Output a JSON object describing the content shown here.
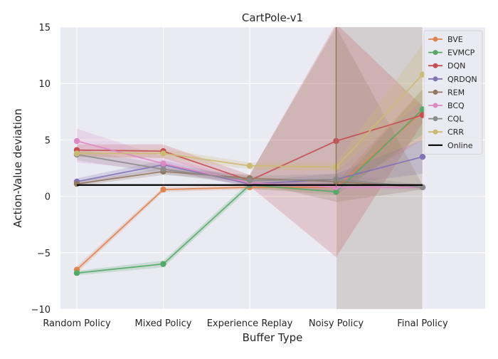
{
  "chart_data": {
    "type": "line",
    "title": "CartPole-v1",
    "xlabel": "Buffer Type",
    "ylabel": "Action-Value deviation",
    "categories": [
      "Random Policy",
      "Mixed Policy",
      "Experience Replay",
      "Noisy Policy",
      "Final Policy"
    ],
    "ylim": [
      -10,
      15
    ],
    "yticks": [
      -10,
      -5,
      0,
      5,
      10,
      15
    ],
    "grid": true,
    "legend_position": "top-right",
    "shaded_categories": [
      "Noisy Policy",
      "Final Policy"
    ],
    "series": [
      {
        "name": "BVE",
        "color": "#dd8452",
        "values": [
          -6.5,
          0.6,
          0.8,
          0.8,
          7.5
        ],
        "lower": [
          -6.8,
          0.4,
          0.6,
          0.5,
          5.0
        ],
        "upper": [
          -6.2,
          0.8,
          1.0,
          1.2,
          9.5
        ]
      },
      {
        "name": "EVMCP",
        "color": "#55a868",
        "values": [
          -6.8,
          -6.0,
          1.0,
          0.4,
          7.7
        ],
        "lower": [
          -7.0,
          -6.3,
          0.7,
          0.1,
          5.5
        ],
        "upper": [
          -6.6,
          -5.7,
          1.3,
          0.7,
          9.5
        ]
      },
      {
        "name": "DQN",
        "color": "#c44e52",
        "values": [
          4.1,
          4.0,
          1.4,
          4.9,
          7.2
        ],
        "lower": [
          3.5,
          3.4,
          0.9,
          -5.4,
          6.5
        ],
        "upper": [
          4.6,
          4.6,
          1.9,
          15.3,
          8.0
        ]
      },
      {
        "name": "QRDQN",
        "color": "#8172b3",
        "values": [
          1.3,
          2.8,
          1.1,
          1.5,
          3.5
        ],
        "lower": [
          1.0,
          2.4,
          0.8,
          1.0,
          2.0
        ],
        "upper": [
          1.6,
          3.2,
          1.4,
          2.0,
          5.0
        ]
      },
      {
        "name": "REM",
        "color": "#937860",
        "values": [
          1.1,
          2.2,
          1.6,
          1.3,
          0.8
        ],
        "lower": [
          0.9,
          1.9,
          1.3,
          -0.5,
          0.6
        ],
        "upper": [
          1.3,
          2.5,
          1.9,
          15.0,
          1.0
        ]
      },
      {
        "name": "BCQ",
        "color": "#da8bc3",
        "values": [
          4.9,
          2.9,
          1.2,
          0.8,
          0.8
        ],
        "lower": [
          3.0,
          2.3,
          0.9,
          0.5,
          0.6
        ],
        "upper": [
          6.0,
          3.5,
          1.5,
          1.1,
          1.0
        ]
      },
      {
        "name": "CQL",
        "color": "#8c8c8c",
        "values": [
          3.7,
          2.4,
          1.4,
          1.5,
          0.8
        ],
        "lower": [
          3.2,
          2.0,
          1.0,
          0.9,
          0.6
        ],
        "upper": [
          4.2,
          2.8,
          1.8,
          2.0,
          1.0
        ]
      },
      {
        "name": "CRR",
        "color": "#ccb974",
        "values": [
          3.8,
          3.8,
          2.7,
          2.6,
          10.8
        ],
        "lower": [
          3.5,
          3.4,
          2.4,
          2.2,
          8.5
        ],
        "upper": [
          4.1,
          4.2,
          3.0,
          3.0,
          13.5
        ]
      },
      {
        "name": "Online",
        "color": "#000000",
        "values": [
          1.0,
          1.0,
          1.0,
          1.0,
          1.0
        ]
      }
    ]
  }
}
